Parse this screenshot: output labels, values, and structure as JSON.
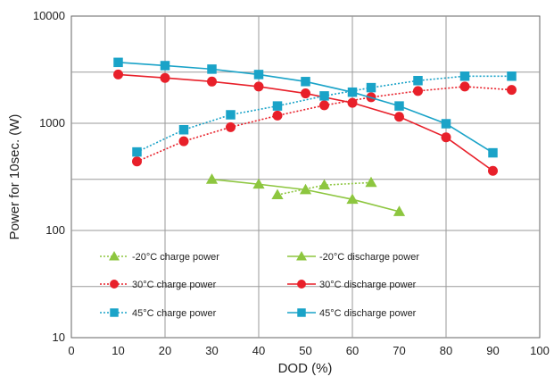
{
  "chart_data": {
    "type": "line",
    "title": "",
    "xlabel": "DOD (%)",
    "ylabel": "Power for 10sec. (W)",
    "xlim": [
      0,
      100
    ],
    "ylim": [
      10,
      10000
    ],
    "y_scale": "log",
    "x_ticks": [
      "0",
      "10",
      "20",
      "30",
      "40",
      "50",
      "60",
      "70",
      "80",
      "90",
      "100"
    ],
    "y_ticks": [
      "10",
      "100",
      "1000",
      "10000"
    ],
    "grid": true,
    "legend_position": "bottom-inside",
    "series": [
      {
        "name": "-20°C charge power",
        "color": "#8dc63f",
        "marker": "triangle",
        "line": "dotted",
        "x": [
          44,
          54,
          64
        ],
        "y": [
          215,
          265,
          280
        ]
      },
      {
        "name": "-20°C discharge power",
        "color": "#8dc63f",
        "marker": "triangle",
        "line": "solid",
        "x": [
          30,
          40,
          50,
          60,
          70
        ],
        "y": [
          300,
          270,
          240,
          195,
          150
        ]
      },
      {
        "name": "30°C charge power",
        "color": "#e8202a",
        "marker": "circle",
        "line": "dotted",
        "x": [
          14,
          24,
          34,
          44,
          54,
          64,
          74,
          84,
          94
        ],
        "y": [
          440,
          680,
          920,
          1180,
          1470,
          1750,
          2000,
          2200,
          2050
        ]
      },
      {
        "name": "30°C discharge power",
        "color": "#e8202a",
        "marker": "circle",
        "line": "solid",
        "x": [
          10,
          20,
          30,
          40,
          50,
          60,
          70,
          80,
          90
        ],
        "y": [
          2850,
          2650,
          2450,
          2200,
          1900,
          1550,
          1150,
          740,
          360
        ]
      },
      {
        "name": "45°C charge power",
        "color": "#1aa3c8",
        "marker": "square",
        "line": "dotted",
        "x": [
          14,
          24,
          34,
          44,
          54,
          64,
          74,
          84,
          94
        ],
        "y": [
          540,
          870,
          1200,
          1450,
          1800,
          2150,
          2500,
          2750,
          2750
        ]
      },
      {
        "name": "45°C discharge power",
        "color": "#1aa3c8",
        "marker": "square",
        "line": "solid",
        "x": [
          10,
          20,
          30,
          40,
          50,
          60,
          70,
          80,
          90
        ],
        "y": [
          3700,
          3450,
          3200,
          2850,
          2450,
          1950,
          1450,
          990,
          530
        ]
      }
    ]
  }
}
